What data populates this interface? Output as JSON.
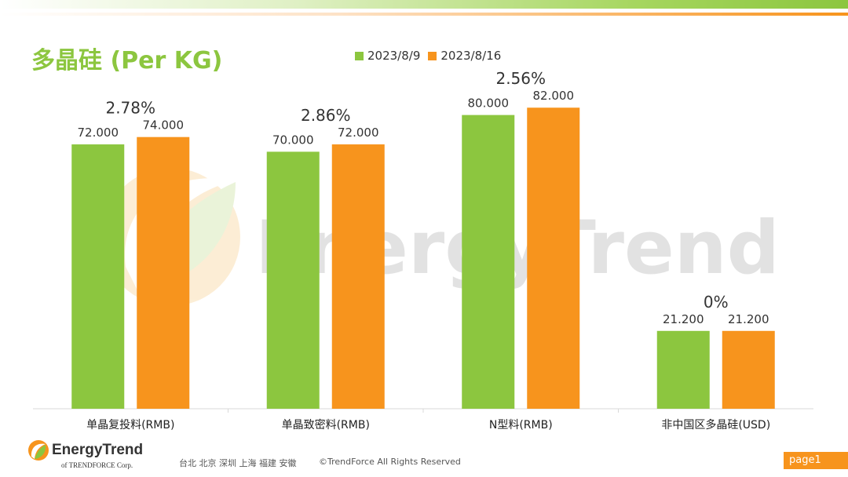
{
  "title": "多晶硅 (Per KG)",
  "watermark": "EnergyTrend",
  "footer": {
    "brand": "EnergyTrend",
    "sub": "of TRENDFORCE Corp.",
    "cities": "台北  北京  深圳  上海  福建  安徽",
    "copyright": "©TrendForce All Rights Reserved",
    "page": "page1"
  },
  "colors": {
    "green": "#8cc63f",
    "orange": "#f7941d",
    "title": "#8cc63f"
  },
  "chart_data": {
    "type": "bar",
    "title": "多晶硅 (Per KG)",
    "xlabel": "",
    "ylabel": "",
    "ylim": [
      0,
      90
    ],
    "grid": false,
    "legend_position": "top",
    "categories": [
      "单晶复投料(RMB)",
      "单晶致密料(RMB)",
      "N型料(RMB)",
      "非中国区多晶硅(USD)"
    ],
    "series": [
      {
        "name": "2023/8/9",
        "color": "#8cc63f",
        "values": [
          72.0,
          70.0,
          80.0,
          21.2
        ],
        "labels": [
          "72.000",
          "70.000",
          "80.000",
          "21.200"
        ]
      },
      {
        "name": "2023/8/16",
        "color": "#f7941d",
        "values": [
          74.0,
          72.0,
          82.0,
          21.2
        ],
        "labels": [
          "74.000",
          "72.000",
          "82.000",
          "21.200"
        ]
      }
    ],
    "changes": [
      "2.78%",
      "2.86%",
      "2.56%",
      "0%"
    ]
  }
}
